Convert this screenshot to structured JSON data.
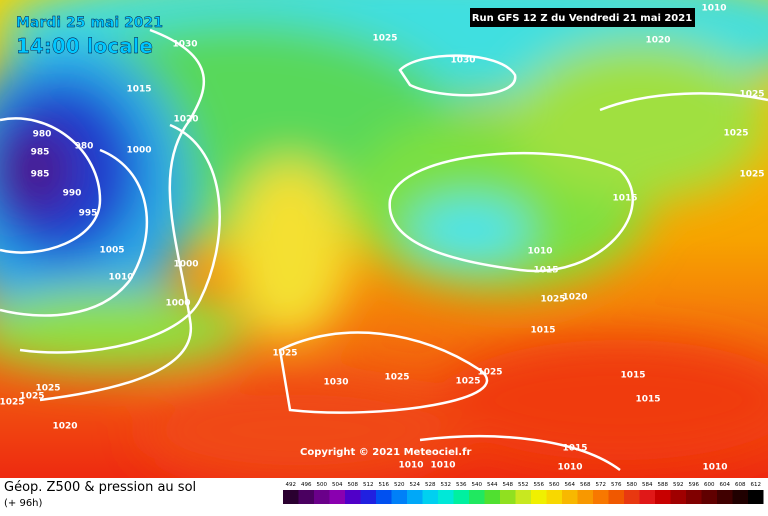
{
  "header": {
    "date": "Mardi 25 mai 2021",
    "time": "14:00 locale",
    "run": "Run GFS 12 Z du Vendredi 21 mai 2021"
  },
  "copyright": "Copyright © 2021 Meteociel.fr",
  "footer": {
    "title": "Géop. Z500 & pression au sol",
    "lead": "(+ 96h)"
  },
  "isobar_labels": [
    "1030",
    "1025",
    "1030",
    "1020",
    "1015",
    "1020",
    "1025",
    "1025",
    "980",
    "980",
    "1000",
    "985",
    "985",
    "990",
    "995",
    "1025",
    "1015",
    "1005",
    "1010",
    "1000",
    "1010",
    "1015",
    "1020",
    "1025",
    "1000",
    "1015",
    "1025",
    "1030",
    "1025",
    "1025",
    "1025",
    "1015",
    "1025",
    "1025",
    "1025",
    "1015",
    "1020",
    "1015",
    "1010",
    "1010",
    "1010",
    "1010",
    "1010"
  ],
  "color_scale": [
    492,
    496,
    500,
    504,
    508,
    512,
    516,
    520,
    524,
    528,
    532,
    536,
    540,
    544,
    548,
    552,
    556,
    560,
    564,
    568,
    572,
    576,
    580,
    584,
    588,
    592,
    596,
    600,
    604,
    608,
    612
  ]
}
